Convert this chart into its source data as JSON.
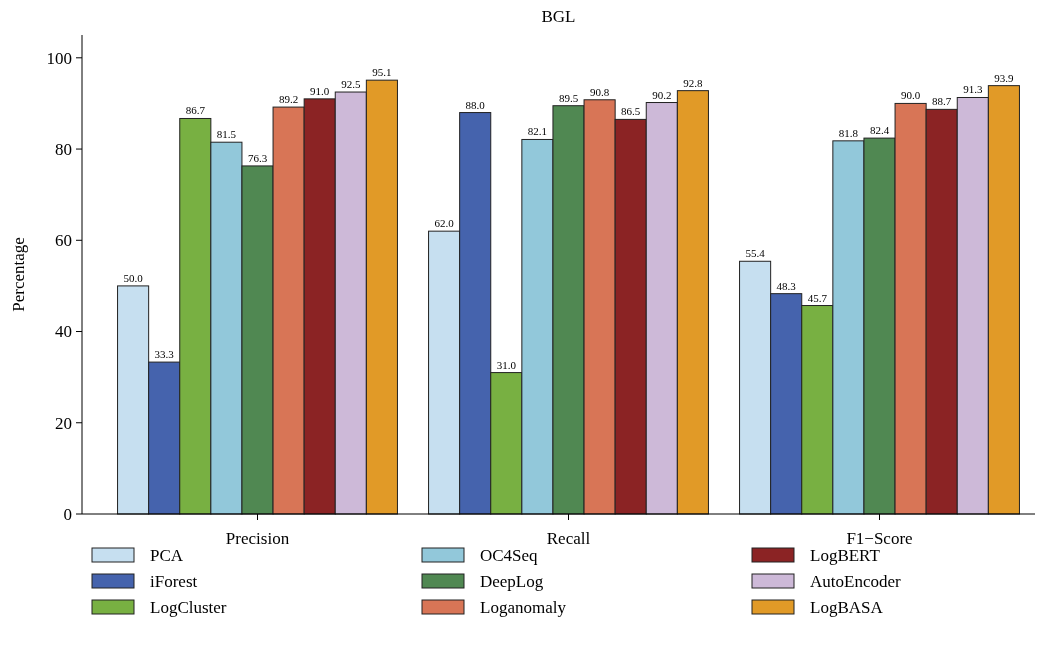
{
  "chart_data": {
    "type": "bar",
    "title": "BGL",
    "ylabel": "Percentage",
    "categories": [
      "Precision",
      "Recall",
      "F1−Score"
    ],
    "series": [
      {
        "name": "PCA",
        "color": "#c6dff0",
        "values": [
          50.0,
          62.0,
          55.4
        ],
        "value_labels": [
          "50.0",
          "62.0",
          "55.4"
        ]
      },
      {
        "name": "iForest",
        "color": "#4563ad",
        "values": [
          33.3,
          88.0,
          48.3
        ],
        "value_labels": [
          "33.3",
          "88.0",
          "48.3"
        ]
      },
      {
        "name": "LogCluster",
        "color": "#78b042",
        "values": [
          86.7,
          31.0,
          45.7
        ],
        "value_labels": [
          "86.7",
          "31.0",
          "45.7"
        ]
      },
      {
        "name": "OC4Seq",
        "color": "#92c8da",
        "values": [
          81.5,
          82.1,
          81.8
        ],
        "value_labels": [
          "81.5",
          "82.1",
          "81.8"
        ]
      },
      {
        "name": "DeepLog",
        "color": "#508852",
        "values": [
          76.3,
          89.5,
          82.4
        ],
        "value_labels": [
          "76.3",
          "89.5",
          "82.4"
        ]
      },
      {
        "name": "Loganomaly",
        "color": "#d87556",
        "values": [
          89.2,
          90.8,
          90.0
        ],
        "value_labels": [
          "89.2",
          "90.8",
          "90.0"
        ]
      },
      {
        "name": "LogBERT",
        "color": "#8b2324",
        "values": [
          91.0,
          86.5,
          88.7
        ],
        "value_labels": [
          "91.0",
          "86.5",
          "88.7"
        ]
      },
      {
        "name": "AutoEncoder",
        "color": "#cdb9d8",
        "values": [
          92.5,
          90.2,
          91.3
        ],
        "value_labels": [
          "92.5",
          "90.2",
          "91.3"
        ]
      },
      {
        "name": "LogBASA",
        "color": "#e19a27",
        "values": [
          95.1,
          92.8,
          93.9
        ],
        "value_labels": [
          "95.1",
          "92.8",
          "93.9"
        ]
      }
    ],
    "ylim": [
      0,
      105
    ],
    "yticks": [
      0,
      20,
      40,
      60,
      80,
      100
    ],
    "legend": "bottom"
  }
}
